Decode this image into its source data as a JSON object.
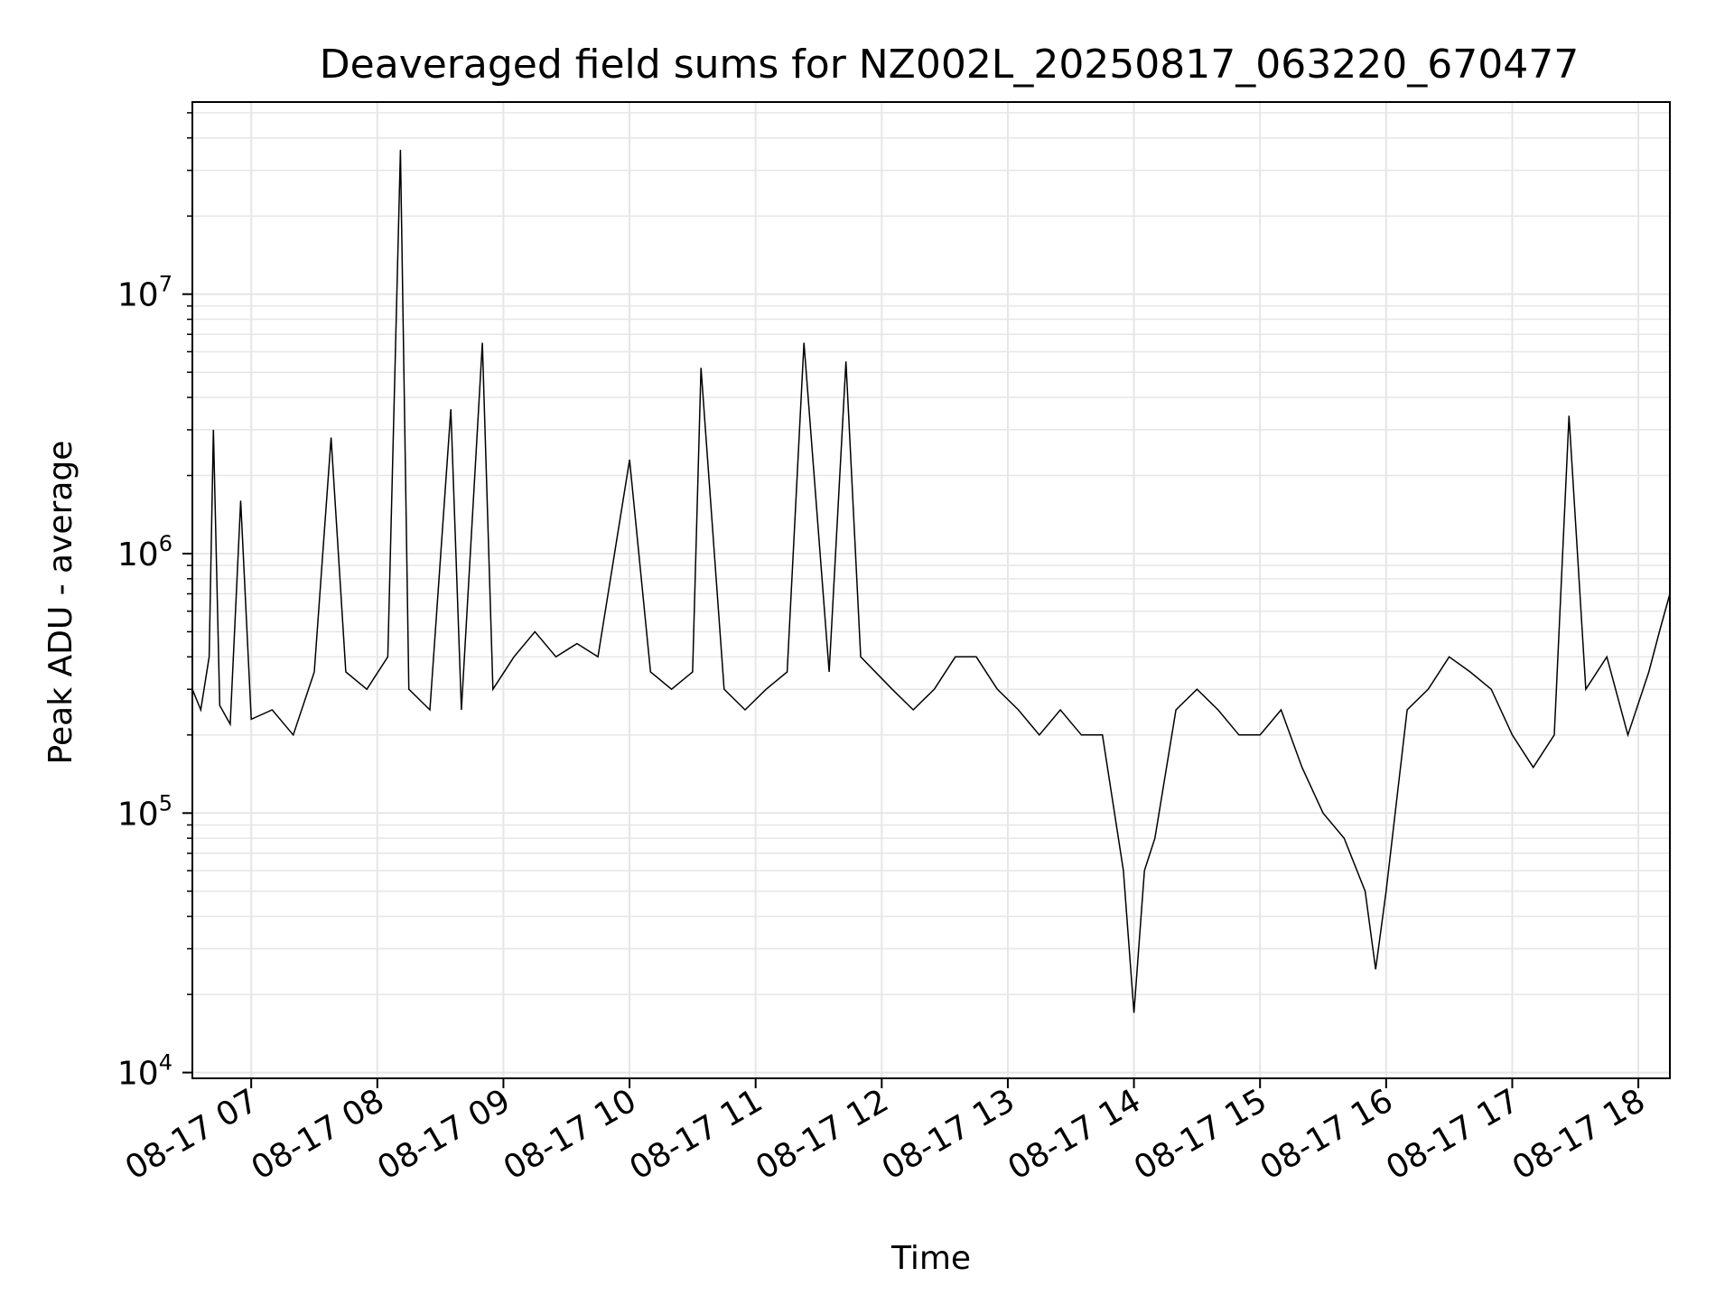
{
  "chart_data": {
    "type": "line",
    "title": "Deaveraged field sums for NZ002L_20250817_063220_670477",
    "xlabel": "Time",
    "ylabel": "Peak ADU - average",
    "y_scale": "log",
    "ylim": [
      9500,
      55000000
    ],
    "xlim": [
      "2025-08-17 06:32",
      "2025-08-17 18:15"
    ],
    "grid": true,
    "line_color": "#000000",
    "x_ticks": [
      {
        "t": "2025-08-17 07:00",
        "label": "08-17 07"
      },
      {
        "t": "2025-08-17 08:00",
        "label": "08-17 08"
      },
      {
        "t": "2025-08-17 09:00",
        "label": "08-17 09"
      },
      {
        "t": "2025-08-17 10:00",
        "label": "08-17 10"
      },
      {
        "t": "2025-08-17 11:00",
        "label": "08-17 11"
      },
      {
        "t": "2025-08-17 12:00",
        "label": "08-17 12"
      },
      {
        "t": "2025-08-17 13:00",
        "label": "08-17 13"
      },
      {
        "t": "2025-08-17 14:00",
        "label": "08-17 14"
      },
      {
        "t": "2025-08-17 15:00",
        "label": "08-17 15"
      },
      {
        "t": "2025-08-17 16:00",
        "label": "08-17 16"
      },
      {
        "t": "2025-08-17 17:00",
        "label": "08-17 17"
      },
      {
        "t": "2025-08-17 18:00",
        "label": "08-17 18"
      }
    ],
    "y_ticks": [
      {
        "v": 10000,
        "base": "10",
        "exp": "4"
      },
      {
        "v": 100000,
        "base": "10",
        "exp": "5"
      },
      {
        "v": 1000000,
        "base": "10",
        "exp": "6"
      },
      {
        "v": 10000000,
        "base": "10",
        "exp": "7"
      }
    ],
    "series": [
      {
        "points": [
          [
            "2025-08-17 06:32",
            300000
          ],
          [
            "2025-08-17 06:36",
            250000
          ],
          [
            "2025-08-17 06:40",
            400000
          ],
          [
            "2025-08-17 06:42",
            3000000
          ],
          [
            "2025-08-17 06:45",
            260000
          ],
          [
            "2025-08-17 06:50",
            220000
          ],
          [
            "2025-08-17 06:55",
            1600000
          ],
          [
            "2025-08-17 07:00",
            230000
          ],
          [
            "2025-08-17 07:10",
            250000
          ],
          [
            "2025-08-17 07:20",
            200000
          ],
          [
            "2025-08-17 07:30",
            350000
          ],
          [
            "2025-08-17 07:38",
            2800000
          ],
          [
            "2025-08-17 07:45",
            350000
          ],
          [
            "2025-08-17 07:55",
            300000
          ],
          [
            "2025-08-17 08:05",
            400000
          ],
          [
            "2025-08-17 08:11",
            36000000
          ],
          [
            "2025-08-17 08:15",
            300000
          ],
          [
            "2025-08-17 08:25",
            250000
          ],
          [
            "2025-08-17 08:35",
            3600000
          ],
          [
            "2025-08-17 08:40",
            250000
          ],
          [
            "2025-08-17 08:50",
            6500000
          ],
          [
            "2025-08-17 08:55",
            300000
          ],
          [
            "2025-08-17 09:05",
            400000
          ],
          [
            "2025-08-17 09:15",
            500000
          ],
          [
            "2025-08-17 09:25",
            400000
          ],
          [
            "2025-08-17 09:35",
            450000
          ],
          [
            "2025-08-17 09:45",
            400000
          ],
          [
            "2025-08-17 10:00",
            2300000
          ],
          [
            "2025-08-17 10:10",
            350000
          ],
          [
            "2025-08-17 10:20",
            300000
          ],
          [
            "2025-08-17 10:30",
            350000
          ],
          [
            "2025-08-17 10:34",
            5200000
          ],
          [
            "2025-08-17 10:45",
            300000
          ],
          [
            "2025-08-17 10:55",
            250000
          ],
          [
            "2025-08-17 11:05",
            300000
          ],
          [
            "2025-08-17 11:15",
            350000
          ],
          [
            "2025-08-17 11:23",
            6500000
          ],
          [
            "2025-08-17 11:35",
            350000
          ],
          [
            "2025-08-17 11:43",
            5500000
          ],
          [
            "2025-08-17 11:50",
            400000
          ],
          [
            "2025-08-17 12:05",
            300000
          ],
          [
            "2025-08-17 12:15",
            250000
          ],
          [
            "2025-08-17 12:25",
            300000
          ],
          [
            "2025-08-17 12:35",
            400000
          ],
          [
            "2025-08-17 12:45",
            400000
          ],
          [
            "2025-08-17 12:55",
            300000
          ],
          [
            "2025-08-17 13:05",
            250000
          ],
          [
            "2025-08-17 13:15",
            200000
          ],
          [
            "2025-08-17 13:25",
            250000
          ],
          [
            "2025-08-17 13:35",
            200000
          ],
          [
            "2025-08-17 13:45",
            200000
          ],
          [
            "2025-08-17 13:55",
            60000
          ],
          [
            "2025-08-17 14:00",
            17000
          ],
          [
            "2025-08-17 14:05",
            60000
          ],
          [
            "2025-08-17 14:10",
            80000
          ],
          [
            "2025-08-17 14:20",
            250000
          ],
          [
            "2025-08-17 14:30",
            300000
          ],
          [
            "2025-08-17 14:40",
            250000
          ],
          [
            "2025-08-17 14:50",
            200000
          ],
          [
            "2025-08-17 15:00",
            200000
          ],
          [
            "2025-08-17 15:10",
            250000
          ],
          [
            "2025-08-17 15:20",
            150000
          ],
          [
            "2025-08-17 15:30",
            100000
          ],
          [
            "2025-08-17 15:40",
            80000
          ],
          [
            "2025-08-17 15:50",
            50000
          ],
          [
            "2025-08-17 15:55",
            25000
          ],
          [
            "2025-08-17 16:00",
            50000
          ],
          [
            "2025-08-17 16:10",
            250000
          ],
          [
            "2025-08-17 16:20",
            300000
          ],
          [
            "2025-08-17 16:30",
            400000
          ],
          [
            "2025-08-17 16:40",
            350000
          ],
          [
            "2025-08-17 16:50",
            300000
          ],
          [
            "2025-08-17 17:00",
            200000
          ],
          [
            "2025-08-17 17:10",
            150000
          ],
          [
            "2025-08-17 17:20",
            200000
          ],
          [
            "2025-08-17 17:27",
            3400000
          ],
          [
            "2025-08-17 17:35",
            300000
          ],
          [
            "2025-08-17 17:45",
            400000
          ],
          [
            "2025-08-17 17:55",
            200000
          ],
          [
            "2025-08-17 18:05",
            350000
          ],
          [
            "2025-08-17 18:10",
            500000
          ],
          [
            "2025-08-17 18:15",
            700000
          ]
        ]
      }
    ]
  }
}
